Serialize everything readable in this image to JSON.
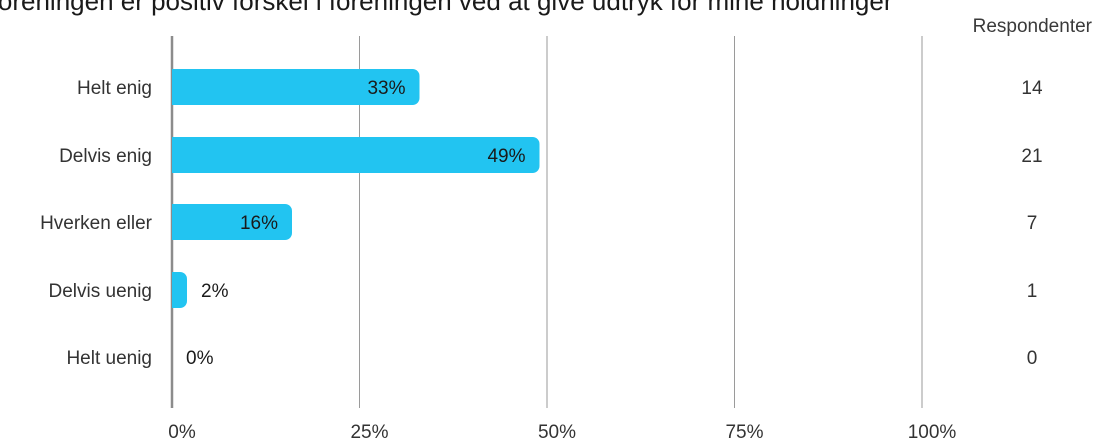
{
  "chart_data": {
    "type": "bar",
    "orientation": "horizontal",
    "title": "Foreningen er positiv forskel i foreningen ved at give udtryk for mine holdninger",
    "categories": [
      "Helt enig",
      "Delvis enig",
      "Hverken eller",
      "Delvis uenig",
      "Helt uenig"
    ],
    "values": [
      33,
      49,
      16,
      2,
      0
    ],
    "value_labels": [
      "33%",
      "49%",
      "16%",
      "2%",
      "0%"
    ],
    "respondents_header": "Respondenter",
    "respondents": [
      "14",
      "21",
      "7",
      "1",
      "0"
    ],
    "xticks": [
      0,
      25,
      50,
      75,
      100
    ],
    "xtick_labels": [
      "0%",
      "25%",
      "50%",
      "75%",
      "100%"
    ],
    "xlim": [
      0,
      100
    ],
    "bar_color": "#22c4f1",
    "grid": true
  }
}
